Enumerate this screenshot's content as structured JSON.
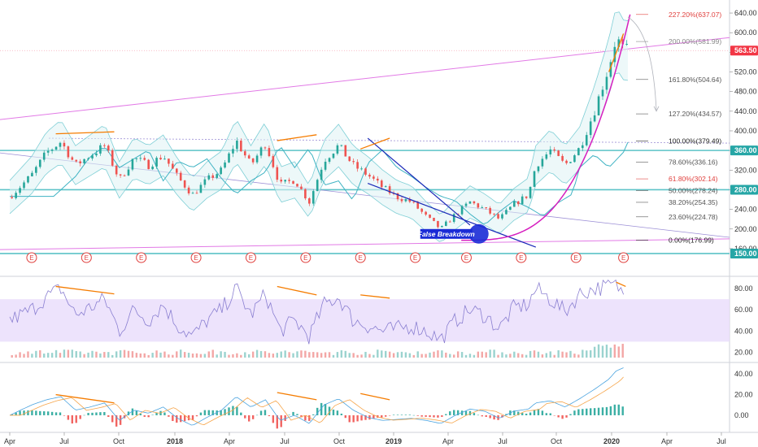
{
  "chart_data": {
    "type": "candlestick",
    "x_axis": {
      "labels": [
        "Apr",
        "Jul",
        "Oct",
        "2018",
        "Apr",
        "Jul",
        "Oct",
        "2019",
        "Apr",
        "Jul",
        "Oct",
        "2020",
        "Apr",
        "Jul"
      ],
      "bold_labels": [
        "2018",
        "2019",
        "2020"
      ]
    },
    "price_axis": {
      "range": [
        140,
        650
      ],
      "ticks": [
        "640.00",
        "600.00",
        "560.00",
        "520.00",
        "480.00",
        "440.00",
        "400.00",
        "360.00",
        "320.00",
        "280.00",
        "240.00",
        "200.00",
        "160.00"
      ]
    },
    "price_badges": [
      {
        "label": "563.50",
        "value": 563.5,
        "color": "#f23645"
      },
      {
        "label": "360.00",
        "value": 360,
        "color": "#26a6a6"
      },
      {
        "label": "280.00",
        "value": 280,
        "color": "#26a6a6"
      },
      {
        "label": "150.00",
        "value": 150,
        "color": "#26a6a6"
      }
    ],
    "fibonacci": [
      {
        "label": "227.20%(637.07)",
        "value": 637.07,
        "color": "#e0413e"
      },
      {
        "label": "200.00%(581.99)",
        "value": 581.99,
        "color": "#888888"
      },
      {
        "label": "161.80%(504.64)",
        "value": 504.64,
        "color": "#555555"
      },
      {
        "label": "127.20%(434.57)",
        "value": 434.57,
        "color": "#555555"
      },
      {
        "label": "100.00%(379.49)",
        "value": 379.49,
        "color": "#222222"
      },
      {
        "label": "78.60%(336.16)",
        "value": 336.16,
        "color": "#555555"
      },
      {
        "label": "61.80%(302.14)",
        "value": 302.14,
        "color": "#e0413e"
      },
      {
        "label": "50.00%(278.24)",
        "value": 278.24,
        "color": "#555555"
      },
      {
        "label": "38.20%(254.35)",
        "value": 254.35,
        "color": "#555555"
      },
      {
        "label": "23.60%(224.78)",
        "value": 224.78,
        "color": "#555555"
      },
      {
        "label": "0.00%(176.99)",
        "value": 176.99,
        "color": "#222222"
      }
    ],
    "earnings_marker": "E",
    "annotation": "False Breakdown",
    "rsi_axis": {
      "range": [
        15,
        90
      ],
      "ticks": [
        "80.00",
        "60.00",
        "40.00",
        "20.00"
      ],
      "band": [
        30,
        70
      ]
    },
    "macd_axis": {
      "range": [
        -15,
        48
      ],
      "ticks": [
        "40.00",
        "20.00",
        "0.00"
      ]
    },
    "price_path": [
      [
        0,
        265
      ],
      [
        3,
        310
      ],
      [
        5,
        355
      ],
      [
        7,
        378
      ],
      [
        9,
        330
      ],
      [
        11,
        350
      ],
      [
        13,
        370
      ],
      [
        15,
        300
      ],
      [
        17,
        345
      ],
      [
        19,
        330
      ],
      [
        21,
        350
      ],
      [
        23,
        305
      ],
      [
        25,
        270
      ],
      [
        27,
        300
      ],
      [
        29,
        320
      ],
      [
        31,
        380
      ],
      [
        33,
        330
      ],
      [
        35,
        375
      ],
      [
        37,
        290
      ],
      [
        39,
        300
      ],
      [
        41,
        255
      ],
      [
        43,
        340
      ],
      [
        45,
        370
      ],
      [
        47,
        330
      ],
      [
        49,
        310
      ],
      [
        51,
        285
      ],
      [
        53,
        265
      ],
      [
        55,
        255
      ],
      [
        57,
        225
      ],
      [
        59,
        200
      ],
      [
        61,
        230
      ],
      [
        63,
        255
      ],
      [
        65,
        240
      ],
      [
        67,
        220
      ],
      [
        69,
        250
      ],
      [
        71,
        270
      ],
      [
        72,
        330
      ],
      [
        74,
        360
      ],
      [
        76,
        330
      ],
      [
        78,
        365
      ],
      [
        80,
        440
      ],
      [
        82,
        530
      ],
      [
        83,
        590
      ],
      [
        84,
        565
      ],
      [
        84.6,
        563.5
      ]
    ],
    "rsi_path": [
      [
        0,
        50
      ],
      [
        3,
        60
      ],
      [
        5,
        72
      ],
      [
        7,
        80
      ],
      [
        9,
        55
      ],
      [
        11,
        62
      ],
      [
        13,
        70
      ],
      [
        15,
        40
      ],
      [
        17,
        60
      ],
      [
        19,
        50
      ],
      [
        21,
        65
      ],
      [
        23,
        45
      ],
      [
        25,
        35
      ],
      [
        27,
        50
      ],
      [
        29,
        60
      ],
      [
        31,
        80
      ],
      [
        33,
        55
      ],
      [
        35,
        75
      ],
      [
        37,
        40
      ],
      [
        39,
        50
      ],
      [
        41,
        35
      ],
      [
        43,
        65
      ],
      [
        45,
        72
      ],
      [
        47,
        50
      ],
      [
        49,
        45
      ],
      [
        51,
        40
      ],
      [
        53,
        42
      ],
      [
        55,
        45
      ],
      [
        57,
        40
      ],
      [
        59,
        32
      ],
      [
        61,
        50
      ],
      [
        63,
        60
      ],
      [
        65,
        55
      ],
      [
        67,
        42
      ],
      [
        69,
        62
      ],
      [
        71,
        65
      ],
      [
        72,
        80
      ],
      [
        74,
        70
      ],
      [
        76,
        58
      ],
      [
        78,
        75
      ],
      [
        80,
        80
      ],
      [
        82,
        82
      ],
      [
        83,
        84
      ],
      [
        84,
        75
      ]
    ],
    "macd_path": [
      [
        0,
        0
      ],
      [
        3,
        10
      ],
      [
        5,
        15
      ],
      [
        7,
        18
      ],
      [
        9,
        5
      ],
      [
        11,
        8
      ],
      [
        13,
        12
      ],
      [
        15,
        -5
      ],
      [
        17,
        5
      ],
      [
        19,
        2
      ],
      [
        21,
        8
      ],
      [
        23,
        -3
      ],
      [
        25,
        -10
      ],
      [
        27,
        -2
      ],
      [
        29,
        5
      ],
      [
        31,
        18
      ],
      [
        33,
        8
      ],
      [
        35,
        15
      ],
      [
        37,
        -5
      ],
      [
        39,
        0
      ],
      [
        41,
        -8
      ],
      [
        43,
        10
      ],
      [
        45,
        16
      ],
      [
        47,
        5
      ],
      [
        49,
        -2
      ],
      [
        51,
        -5
      ],
      [
        53,
        -4
      ],
      [
        55,
        -3
      ],
      [
        57,
        -5
      ],
      [
        59,
        -8
      ],
      [
        61,
        0
      ],
      [
        63,
        6
      ],
      [
        65,
        4
      ],
      [
        67,
        -3
      ],
      [
        69,
        4
      ],
      [
        71,
        6
      ],
      [
        72,
        12
      ],
      [
        74,
        14
      ],
      [
        76,
        8
      ],
      [
        78,
        16
      ],
      [
        80,
        25
      ],
      [
        82,
        35
      ],
      [
        83,
        43
      ],
      [
        84,
        46
      ]
    ]
  }
}
